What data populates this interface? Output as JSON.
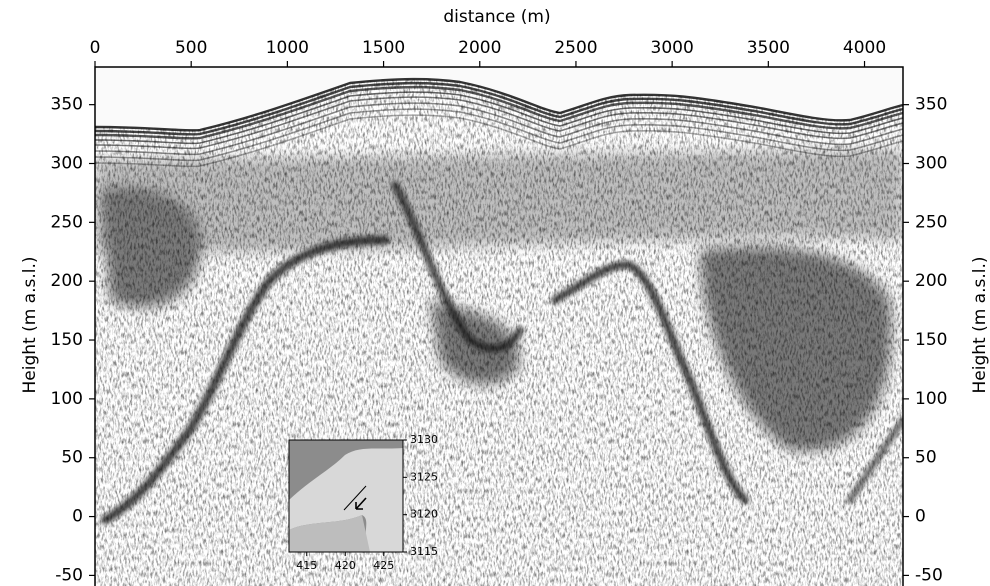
{
  "chart_data": {
    "type": "radargram",
    "x_label": "distance (m)",
    "y_label": "Height (m a.s.l.)",
    "xlim": [
      0,
      4200
    ],
    "xticks": [
      0,
      500,
      1000,
      1500,
      2000,
      2500,
      3000,
      3500,
      4000
    ],
    "ylim": [
      -59,
      382
    ],
    "yticks": [
      -50,
      0,
      50,
      100,
      150,
      200,
      250,
      300,
      350
    ],
    "inset": {
      "xlim": [
        412.7,
        427.5
      ],
      "xticks": [
        415,
        420,
        425
      ],
      "ylim": [
        3115,
        3130
      ],
      "yticks": [
        3115,
        3120,
        3125,
        3130
      ]
    }
  }
}
